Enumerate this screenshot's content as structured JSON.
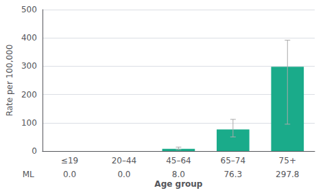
{
  "chart_data": {
    "type": "bar",
    "categories": [
      "≤19",
      "20–44",
      "45–64",
      "65–74",
      "75+"
    ],
    "values": [
      0.0,
      0.0,
      8.0,
      76.3,
      297.8
    ],
    "error_low": [
      0.0,
      0.0,
      5.0,
      50.0,
      95.0
    ],
    "error_high": [
      0.0,
      0.0,
      14.0,
      112.0,
      392.0
    ],
    "table_rows": [
      {
        "label": "ML",
        "values": [
          "0.0",
          "0.0",
          "8.0",
          "76.3",
          "297.8"
        ]
      }
    ],
    "color": "#1aab8a",
    "xlabel": "Age group",
    "ylabel": "Rate per 100,000",
    "ylim": [
      0,
      500
    ],
    "yticks": [
      0,
      100,
      200,
      300,
      400,
      500
    ],
    "grid": true
  }
}
